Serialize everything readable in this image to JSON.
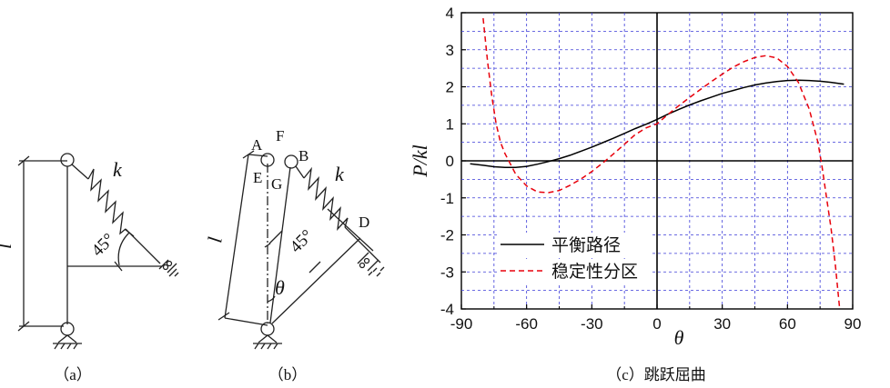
{
  "figure": {
    "a": {
      "caption": "（a）",
      "length_label": "l",
      "spring_label": "k",
      "angle_label": "45°"
    },
    "b": {
      "caption": "（b）",
      "points": {
        "A": "A",
        "B": "B",
        "D": "D",
        "E": "E",
        "F": "F",
        "G": "G"
      },
      "length_label": "l",
      "spring_label": "k",
      "angle_label": "45°",
      "theta_label": "θ"
    },
    "c": {
      "caption": "（c）跳跃屈曲",
      "xlabel": "θ",
      "ylabel": "P/kl"
    }
  },
  "chart_data": {
    "type": "line",
    "xlabel": "θ",
    "ylabel": "P/kl",
    "xlim": [
      -90,
      90
    ],
    "ylim": [
      -4,
      4
    ],
    "xticks": [
      -90,
      -60,
      -30,
      0,
      30,
      60,
      90
    ],
    "yticks": [
      4,
      3,
      2,
      1,
      0,
      -1,
      -2,
      -3,
      -4
    ],
    "grid": true,
    "legend_position": "lower-left",
    "series": [
      {
        "name": "平衡路径",
        "color": "#000000",
        "dash": "solid",
        "x": [
          -86,
          -80,
          -75,
          -70,
          -65,
          -60,
          -55,
          -50,
          -45,
          -40,
          -35,
          -30,
          -25,
          -20,
          -15,
          -10,
          -5,
          0,
          5,
          10,
          15,
          20,
          25,
          30,
          35,
          40,
          45,
          50,
          55,
          60,
          65,
          70,
          75,
          80,
          86
        ],
        "y": [
          -0.08,
          -0.12,
          -0.16,
          -0.18,
          -0.18,
          -0.15,
          -0.09,
          -0.02,
          0.06,
          0.15,
          0.26,
          0.37,
          0.49,
          0.61,
          0.74,
          0.87,
          0.99,
          1.12,
          1.26,
          1.39,
          1.51,
          1.62,
          1.72,
          1.82,
          1.9,
          1.98,
          2.05,
          2.1,
          2.14,
          2.17,
          2.18,
          2.17,
          2.15,
          2.12,
          2.07
        ]
      },
      {
        "name": "稳定性分区",
        "color": "#e8000b",
        "dash": "dashed",
        "x": [
          -80,
          -78,
          -76,
          -74,
          -72,
          -70,
          -65,
          -60,
          -55,
          -50,
          -45,
          -40,
          -35,
          -30,
          -25,
          -20,
          -15,
          -10,
          -5,
          0,
          5,
          10,
          15,
          20,
          25,
          30,
          35,
          40,
          45,
          50,
          55,
          60,
          65,
          70,
          74,
          76,
          78,
          80,
          82,
          84
        ],
        "y": [
          3.85,
          2.7,
          1.75,
          1.0,
          0.5,
          0.2,
          -0.36,
          -0.68,
          -0.84,
          -0.86,
          -0.8,
          -0.66,
          -0.49,
          -0.29,
          -0.06,
          0.19,
          0.45,
          0.71,
          0.89,
          1.0,
          1.25,
          1.49,
          1.71,
          1.93,
          2.14,
          2.34,
          2.53,
          2.68,
          2.79,
          2.84,
          2.78,
          2.55,
          2.12,
          1.4,
          0.5,
          -0.2,
          -1.0,
          -1.8,
          -2.8,
          -4.0
        ]
      }
    ]
  }
}
